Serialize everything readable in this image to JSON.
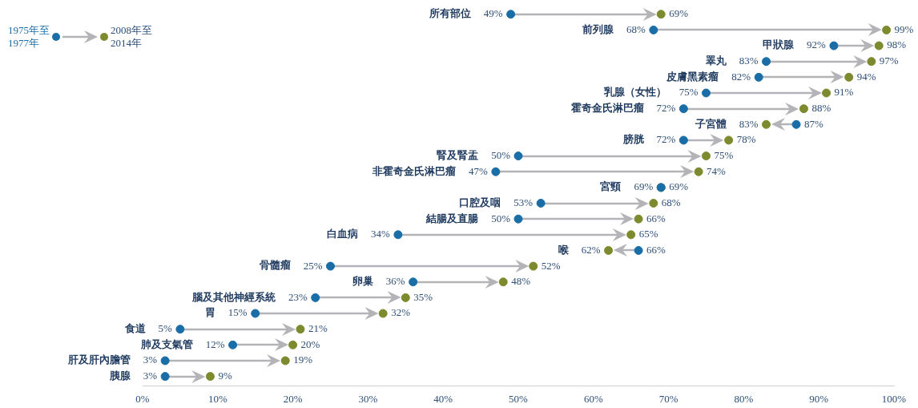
{
  "chart_data": {
    "type": "scatter",
    "orientation": "horizontal",
    "categories": [
      "所有部位",
      "前列腺",
      "甲狀腺",
      "睪丸",
      "皮膚黑素瘤",
      "乳腺（女性）",
      "霍奇金氏淋巴瘤",
      "子宮體",
      "膀胱",
      "腎及腎盂",
      "非霍奇金氏淋巴瘤",
      "宮頸",
      "口腔及咽",
      "結腸及直腸",
      "白血病",
      "喉",
      "骨髓瘤",
      "卵巢",
      "腦及其他神經系統",
      "胃",
      "食道",
      "肺及支氣管",
      "肝及肝內膽管",
      "胰腺"
    ],
    "series": [
      {
        "name": "1975年至1977年",
        "color": "#1a6ea8",
        "values": [
          49,
          68,
          92,
          83,
          82,
          75,
          72,
          87,
          72,
          50,
          47,
          69,
          53,
          50,
          34,
          66,
          25,
          36,
          23,
          15,
          5,
          12,
          3,
          3
        ],
        "value_labels": [
          "49%",
          "68%",
          "92%",
          "83%",
          "82%",
          "75%",
          "72%",
          "87%",
          "72%",
          "50%",
          "47%",
          "69%",
          "53%",
          "50%",
          "34%",
          "66%",
          "25%",
          "36%",
          "23%",
          "15%",
          "5%",
          "12%",
          "3%",
          "3%"
        ]
      },
      {
        "name": "2008年至2014年",
        "color": "#7d8b2e",
        "values": [
          69,
          99,
          98,
          97,
          94,
          91,
          88,
          83,
          78,
          75,
          74,
          69,
          68,
          66,
          65,
          62,
          52,
          48,
          35,
          32,
          21,
          20,
          19,
          9
        ],
        "value_labels": [
          "69%",
          "99%",
          "98%",
          "97%",
          "94%",
          "91%",
          "88%",
          "83%",
          "78%",
          "75%",
          "74%",
          "69%",
          "68%",
          "66%",
          "65%",
          "62%",
          "52%",
          "48%",
          "35%",
          "32%",
          "21%",
          "20%",
          "19%",
          "9%"
        ]
      }
    ],
    "xlim": [
      0,
      100
    ],
    "xticks": [
      {
        "value": 0,
        "label": "0%"
      },
      {
        "value": 10,
        "label": "10%"
      },
      {
        "value": 20,
        "label": "20%"
      },
      {
        "value": 30,
        "label": "30%"
      },
      {
        "value": 40,
        "label": "40%"
      },
      {
        "value": 50,
        "label": "50%"
      },
      {
        "value": 60,
        "label": "60%"
      },
      {
        "value": 70,
        "label": "70%"
      },
      {
        "value": 80,
        "label": "80%"
      },
      {
        "value": 90,
        "label": "90%"
      },
      {
        "value": 100,
        "label": "100%"
      }
    ],
    "tick_labels": "x",
    "grid": false,
    "legend": "top left",
    "marker": "circle"
  }
}
